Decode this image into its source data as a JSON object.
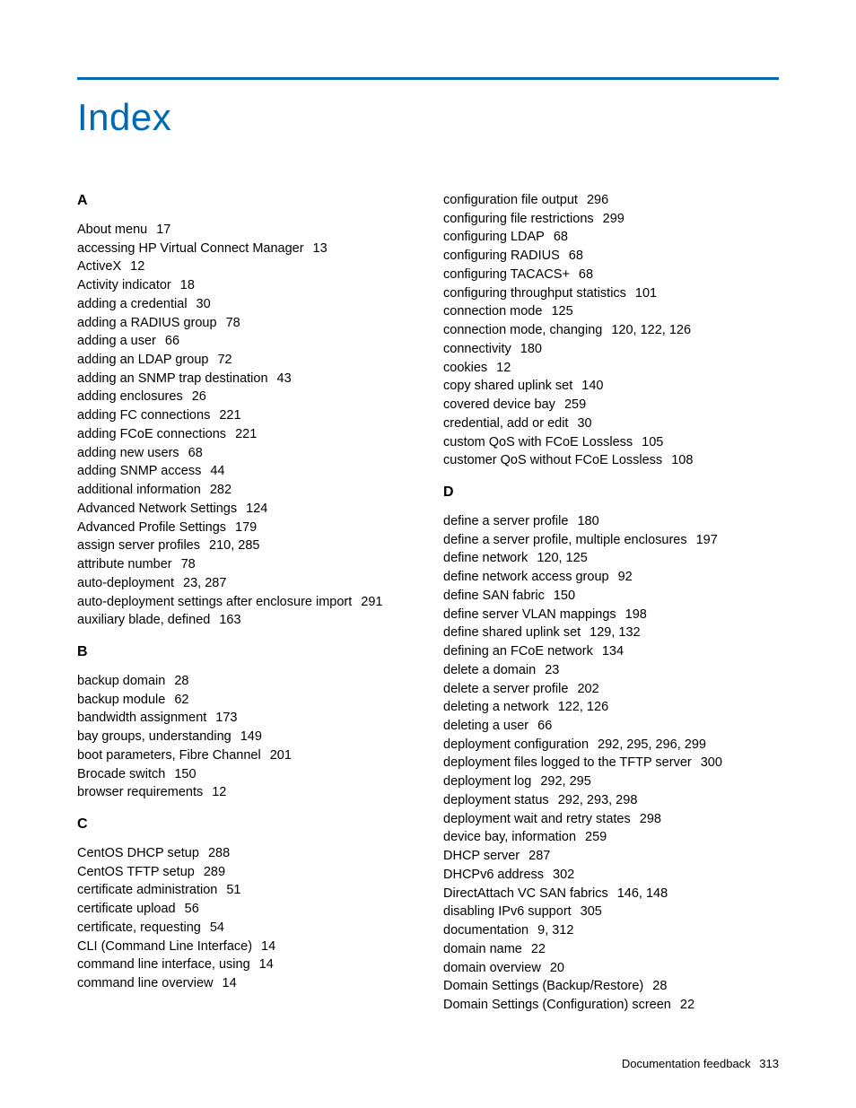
{
  "title": "Index",
  "colors": {
    "accent": "#0068b4",
    "text": "#000000",
    "background": "#ffffff"
  },
  "footer": {
    "label": "Documentation feedback",
    "page": "313"
  },
  "left_column": [
    {
      "type": "heading",
      "text": "A"
    },
    {
      "type": "entry",
      "topic": "About menu",
      "pages": "17"
    },
    {
      "type": "entry",
      "topic": "accessing HP Virtual Connect Manager",
      "pages": "13"
    },
    {
      "type": "entry",
      "topic": "ActiveX",
      "pages": "12"
    },
    {
      "type": "entry",
      "topic": "Activity indicator",
      "pages": "18"
    },
    {
      "type": "entry",
      "topic": "adding a credential",
      "pages": "30"
    },
    {
      "type": "entry",
      "topic": "adding a RADIUS group",
      "pages": "78"
    },
    {
      "type": "entry",
      "topic": "adding a user",
      "pages": "66"
    },
    {
      "type": "entry",
      "topic": "adding an LDAP group",
      "pages": "72"
    },
    {
      "type": "entry",
      "topic": "adding an SNMP trap destination",
      "pages": "43"
    },
    {
      "type": "entry",
      "topic": "adding enclosures",
      "pages": "26"
    },
    {
      "type": "entry",
      "topic": "adding FC connections",
      "pages": "221"
    },
    {
      "type": "entry",
      "topic": "adding FCoE connections",
      "pages": "221"
    },
    {
      "type": "entry",
      "topic": "adding new users",
      "pages": "68"
    },
    {
      "type": "entry",
      "topic": "adding SNMP access",
      "pages": "44"
    },
    {
      "type": "entry",
      "topic": "additional information",
      "pages": "282"
    },
    {
      "type": "entry",
      "topic": "Advanced Network Settings",
      "pages": "124"
    },
    {
      "type": "entry",
      "topic": "Advanced Profile Settings",
      "pages": "179"
    },
    {
      "type": "entry",
      "topic": "assign server profiles",
      "pages": "210, 285"
    },
    {
      "type": "entry",
      "topic": "attribute number",
      "pages": "78"
    },
    {
      "type": "entry",
      "topic": "auto-deployment",
      "pages": "23, 287"
    },
    {
      "type": "entry",
      "topic": "auto-deployment settings after enclosure import",
      "pages": "291"
    },
    {
      "type": "entry",
      "topic": "auxiliary blade, defined",
      "pages": "163"
    },
    {
      "type": "heading",
      "text": "B"
    },
    {
      "type": "entry",
      "topic": "backup domain",
      "pages": "28"
    },
    {
      "type": "entry",
      "topic": "backup module",
      "pages": "62"
    },
    {
      "type": "entry",
      "topic": "bandwidth assignment",
      "pages": "173"
    },
    {
      "type": "entry",
      "topic": "bay groups, understanding",
      "pages": "149"
    },
    {
      "type": "entry",
      "topic": "boot parameters, Fibre Channel",
      "pages": "201"
    },
    {
      "type": "entry",
      "topic": "Brocade switch",
      "pages": "150"
    },
    {
      "type": "entry",
      "topic": "browser requirements",
      "pages": "12"
    },
    {
      "type": "heading",
      "text": "C"
    },
    {
      "type": "entry",
      "topic": "CentOS DHCP setup",
      "pages": "288"
    },
    {
      "type": "entry",
      "topic": "CentOS TFTP setup",
      "pages": "289"
    },
    {
      "type": "entry",
      "topic": "certificate administration",
      "pages": "51"
    },
    {
      "type": "entry",
      "topic": "certificate upload",
      "pages": "56"
    },
    {
      "type": "entry",
      "topic": "certificate, requesting",
      "pages": "54"
    },
    {
      "type": "entry",
      "topic": "CLI (Command Line Interface)",
      "pages": "14"
    },
    {
      "type": "entry",
      "topic": "command line interface, using",
      "pages": "14"
    },
    {
      "type": "entry",
      "topic": "command line overview",
      "pages": "14"
    }
  ],
  "right_column": [
    {
      "type": "entry",
      "topic": "configuration file output",
      "pages": "296"
    },
    {
      "type": "entry",
      "topic": "configuring file restrictions",
      "pages": "299"
    },
    {
      "type": "entry",
      "topic": "configuring LDAP",
      "pages": "68"
    },
    {
      "type": "entry",
      "topic": "configuring RADIUS",
      "pages": "68"
    },
    {
      "type": "entry",
      "topic": "configuring TACACS+",
      "pages": "68"
    },
    {
      "type": "entry",
      "topic": "configuring throughput statistics",
      "pages": "101"
    },
    {
      "type": "entry",
      "topic": "connection mode",
      "pages": "125"
    },
    {
      "type": "entry",
      "topic": "connection mode, changing",
      "pages": "120, 122, 126"
    },
    {
      "type": "entry",
      "topic": "connectivity",
      "pages": "180"
    },
    {
      "type": "entry",
      "topic": "cookies",
      "pages": "12"
    },
    {
      "type": "entry",
      "topic": "copy shared uplink set",
      "pages": "140"
    },
    {
      "type": "entry",
      "topic": "covered device bay",
      "pages": "259"
    },
    {
      "type": "entry",
      "topic": "credential, add or edit",
      "pages": "30"
    },
    {
      "type": "entry",
      "topic": "custom QoS with FCoE Lossless",
      "pages": "105"
    },
    {
      "type": "entry",
      "topic": "customer QoS without FCoE Lossless",
      "pages": "108"
    },
    {
      "type": "heading",
      "text": "D"
    },
    {
      "type": "entry",
      "topic": "define a server profile",
      "pages": "180"
    },
    {
      "type": "entry",
      "topic": "define a server profile, multiple enclosures",
      "pages": "197"
    },
    {
      "type": "entry",
      "topic": "define network",
      "pages": "120, 125"
    },
    {
      "type": "entry",
      "topic": "define network access group",
      "pages": "92"
    },
    {
      "type": "entry",
      "topic": "define SAN fabric",
      "pages": "150"
    },
    {
      "type": "entry",
      "topic": "define server VLAN mappings",
      "pages": "198"
    },
    {
      "type": "entry",
      "topic": "define shared uplink set",
      "pages": "129, 132"
    },
    {
      "type": "entry",
      "topic": "defining an FCoE network",
      "pages": "134"
    },
    {
      "type": "entry",
      "topic": "delete a domain",
      "pages": "23"
    },
    {
      "type": "entry",
      "topic": "delete a server profile",
      "pages": "202"
    },
    {
      "type": "entry",
      "topic": "deleting a network",
      "pages": "122, 126"
    },
    {
      "type": "entry",
      "topic": "deleting a user",
      "pages": "66"
    },
    {
      "type": "entry",
      "topic": "deployment configuration",
      "pages": "292, 295, 296, 299"
    },
    {
      "type": "entry",
      "topic": "deployment files logged to the TFTP server",
      "pages": "300"
    },
    {
      "type": "entry",
      "topic": "deployment log",
      "pages": "292, 295"
    },
    {
      "type": "entry",
      "topic": "deployment status",
      "pages": "292, 293, 298"
    },
    {
      "type": "entry",
      "topic": "deployment wait and retry states",
      "pages": "298"
    },
    {
      "type": "entry",
      "topic": "device bay, information",
      "pages": "259"
    },
    {
      "type": "entry",
      "topic": "DHCP server",
      "pages": "287"
    },
    {
      "type": "entry",
      "topic": "DHCPv6 address",
      "pages": "302"
    },
    {
      "type": "entry",
      "topic": "DirectAttach VC SAN fabrics",
      "pages": "146, 148"
    },
    {
      "type": "entry",
      "topic": "disabling IPv6 support",
      "pages": "305"
    },
    {
      "type": "entry",
      "topic": "documentation",
      "pages": "9, 312"
    },
    {
      "type": "entry",
      "topic": "domain name",
      "pages": "22"
    },
    {
      "type": "entry",
      "topic": "domain overview",
      "pages": "20"
    },
    {
      "type": "entry",
      "topic": "Domain Settings (Backup/Restore)",
      "pages": "28"
    },
    {
      "type": "entry",
      "topic": "Domain Settings (Configuration) screen",
      "pages": "22"
    }
  ]
}
